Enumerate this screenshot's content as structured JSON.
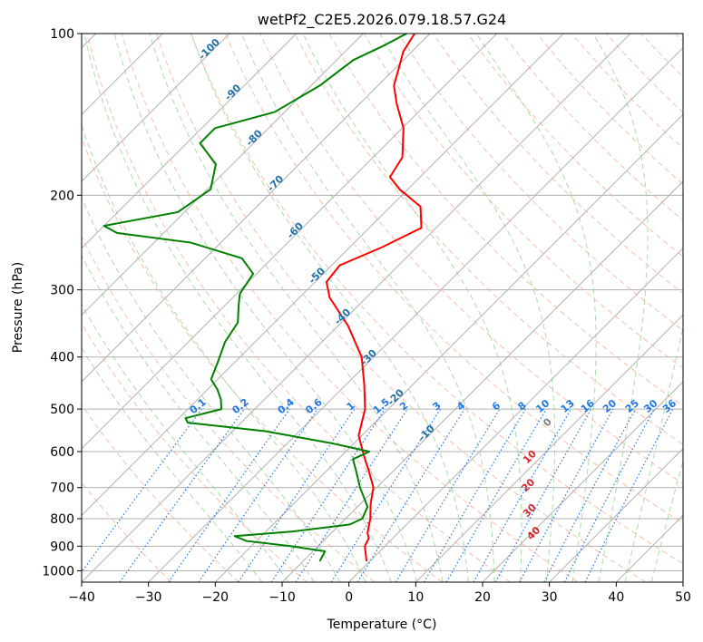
{
  "chart_data": {
    "type": "line",
    "title": "wetPf2_C2E5.2026.079.18.57.G24",
    "xlabel": "Temperature (°C)",
    "ylabel": "Pressure (hPa)",
    "xlim": [
      -40,
      50
    ],
    "ylim": [
      1050,
      100
    ],
    "y_scale": "log",
    "grid": true,
    "x_ticks": [
      "−40",
      "−30",
      "−20",
      "−10",
      "0",
      "10",
      "20",
      "30",
      "40",
      "50"
    ],
    "y_ticks": [
      "100",
      "200",
      "300",
      "400",
      "500",
      "600",
      "700",
      "800",
      "900",
      "1000"
    ],
    "series": [
      {
        "color": "#ff0000",
        "points": [
          [
            -0.5,
            960
          ],
          [
            -3.0,
            900
          ],
          [
            -3.6,
            870
          ],
          [
            -4.6,
            850
          ],
          [
            -6.3,
            800
          ],
          [
            -8.5,
            750
          ],
          [
            -10.5,
            700
          ],
          [
            -13.8,
            650
          ],
          [
            -16.0,
            620
          ],
          [
            -18.2,
            590
          ],
          [
            -20.5,
            560
          ],
          [
            -23.5,
            500
          ],
          [
            -27.3,
            450
          ],
          [
            -31.8,
            400
          ],
          [
            -38.5,
            350
          ],
          [
            -45.5,
            310
          ],
          [
            -48.3,
            290
          ],
          [
            -48.8,
            270
          ],
          [
            -45.2,
            250
          ],
          [
            -42.2,
            230
          ],
          [
            -45.5,
            210
          ],
          [
            -51.2,
            195
          ],
          [
            -54.5,
            185
          ],
          [
            -55.6,
            170
          ],
          [
            -59.8,
            150
          ],
          [
            -64.5,
            135
          ],
          [
            -67.6,
            125
          ],
          [
            -69.7,
            115
          ],
          [
            -71.3,
            108
          ],
          [
            -72.3,
            100
          ]
        ]
      },
      {
        "color": "#008000",
        "points": [
          [
            -7.5,
            960
          ],
          [
            -8.2,
            920
          ],
          [
            -14.0,
            900
          ],
          [
            -21.5,
            880
          ],
          [
            -24.0,
            862
          ],
          [
            -16.0,
            845
          ],
          [
            -8.5,
            820
          ],
          [
            -7.5,
            800
          ],
          [
            -8.5,
            760
          ],
          [
            -12.5,
            700
          ],
          [
            -15.7,
            650
          ],
          [
            -17.8,
            620
          ],
          [
            -16.5,
            600
          ],
          [
            -23.0,
            580
          ],
          [
            -35.0,
            550
          ],
          [
            -48.0,
            530
          ],
          [
            -49.0,
            520
          ],
          [
            -45.0,
            500
          ],
          [
            -46.5,
            480
          ],
          [
            -48.5,
            460
          ],
          [
            -51.0,
            440
          ],
          [
            -52.5,
            410
          ],
          [
            -54.5,
            375
          ],
          [
            -55.5,
            345
          ],
          [
            -58.0,
            320
          ],
          [
            -59.5,
            305
          ],
          [
            -60.5,
            280
          ],
          [
            -64.5,
            262
          ],
          [
            -74.5,
            245
          ],
          [
            -87.0,
            235
          ],
          [
            -90.0,
            228
          ],
          [
            -81.0,
            215
          ],
          [
            -79.5,
            195
          ],
          [
            -82.5,
            175
          ],
          [
            -88.0,
            160
          ],
          [
            -88.0,
            150
          ],
          [
            -81.5,
            140
          ],
          [
            -78.7,
            125
          ],
          [
            -77.5,
            112
          ],
          [
            -75.0,
            105
          ],
          [
            -73.5,
            100
          ]
        ]
      }
    ],
    "dry_adiabat_labels": [
      "-100",
      "-90",
      "-80",
      "-70",
      "-60",
      "-50",
      "-40",
      "-30",
      "-20",
      "-10"
    ],
    "moist_adiabat_labels": [
      "0",
      "10",
      "20",
      "30",
      "40"
    ],
    "mixing_ratio_labels": [
      "0.1",
      "0.2",
      "0.4",
      "0.6",
      "1",
      "1.5",
      "2",
      "3",
      "4",
      "6",
      "8",
      "10",
      "13",
      "16",
      "20",
      "25",
      "30",
      "36"
    ],
    "colors": {
      "temperature": "#ff0000",
      "dewpoint": "#008000",
      "isotherm": "#b0b0b0",
      "isobar": "#b0b0b0",
      "dry_adiabat": "#f6a98c",
      "moist_adiabat": "#8fcf8f",
      "mixing_ratio": "#1f77e4",
      "dry_adiabat_label": "#1f6fa8",
      "moist_adiabat_label": "#d62728",
      "mixing_ratio_label": "#1f77e4",
      "zero_label": "#7f7f7f"
    }
  }
}
